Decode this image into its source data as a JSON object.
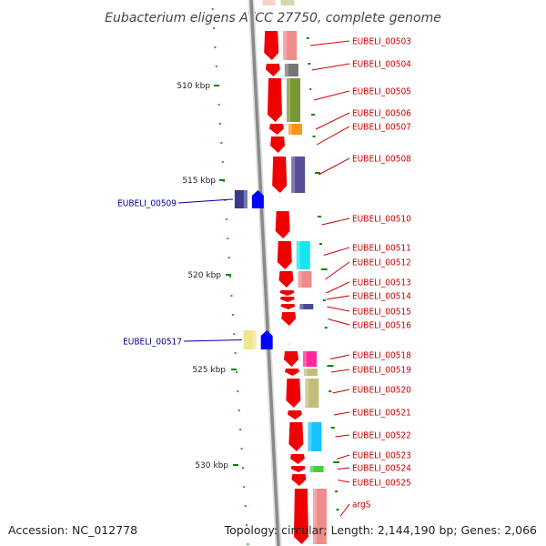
{
  "title": "Eubacterium eligens ATCC 27750, complete genome",
  "footer": {
    "accession": "Accession: NC_012778",
    "topology": "Topology: circular; Length: 2,144,190 bp; Genes: 2,066"
  },
  "colors": {
    "forward_cds": "#f00000",
    "reverse_feature": "#0000ff",
    "label_forward": "#cc0000",
    "label_reverse": "#000099",
    "tick": "#008800",
    "axis": "#888888"
  },
  "scale_labels": [
    "510 kbp",
    "515 kbp",
    "520 kbp",
    "525 kbp",
    "530 kbp"
  ],
  "genes": [
    {
      "id": "EUBELI_00503",
      "strand": "forward",
      "side": "right"
    },
    {
      "id": "EUBELI_00504",
      "strand": "forward",
      "side": "right"
    },
    {
      "id": "EUBELI_00505",
      "strand": "forward",
      "side": "right"
    },
    {
      "id": "EUBELI_00506",
      "strand": "forward",
      "side": "right"
    },
    {
      "id": "EUBELI_00507",
      "strand": "forward",
      "side": "right"
    },
    {
      "id": "EUBELI_00508",
      "strand": "forward",
      "side": "right"
    },
    {
      "id": "EUBELI_00509",
      "strand": "reverse",
      "side": "left"
    },
    {
      "id": "EUBELI_00510",
      "strand": "forward",
      "side": "right"
    },
    {
      "id": "EUBELI_00511",
      "strand": "forward",
      "side": "right"
    },
    {
      "id": "EUBELI_00512",
      "strand": "forward",
      "side": "right"
    },
    {
      "id": "EUBELI_00513",
      "strand": "forward",
      "side": "right"
    },
    {
      "id": "EUBELI_00514",
      "strand": "forward",
      "side": "right"
    },
    {
      "id": "EUBELI_00515",
      "strand": "forward",
      "side": "right"
    },
    {
      "id": "EUBELI_00516",
      "strand": "forward",
      "side": "right"
    },
    {
      "id": "EUBELI_00517",
      "strand": "reverse",
      "side": "left"
    },
    {
      "id": "EUBELI_00518",
      "strand": "forward",
      "side": "right"
    },
    {
      "id": "EUBELI_00519",
      "strand": "forward",
      "side": "right"
    },
    {
      "id": "EUBELI_00520",
      "strand": "forward",
      "side": "right"
    },
    {
      "id": "EUBELI_00521",
      "strand": "forward",
      "side": "right"
    },
    {
      "id": "EUBELI_00522",
      "strand": "forward",
      "side": "right"
    },
    {
      "id": "EUBELI_00523",
      "strand": "forward",
      "side": "right"
    },
    {
      "id": "EUBELI_00524",
      "strand": "forward",
      "side": "right"
    },
    {
      "id": "EUBELI_00525",
      "strand": "forward",
      "side": "right"
    },
    {
      "id": "argS",
      "strand": "forward",
      "side": "right"
    }
  ],
  "cog_colors": [
    "#f08080",
    "#6a6a6a",
    "#6b8e23",
    "#ff8c00",
    "#4b3f8f",
    "#00e5ee",
    "#f08080",
    "#3a3a8a",
    "#f0e68c",
    "#ff1493",
    "#bdb76b",
    "#bdb76b",
    "#00bfff",
    "#32cd32",
    "#f08080"
  ]
}
